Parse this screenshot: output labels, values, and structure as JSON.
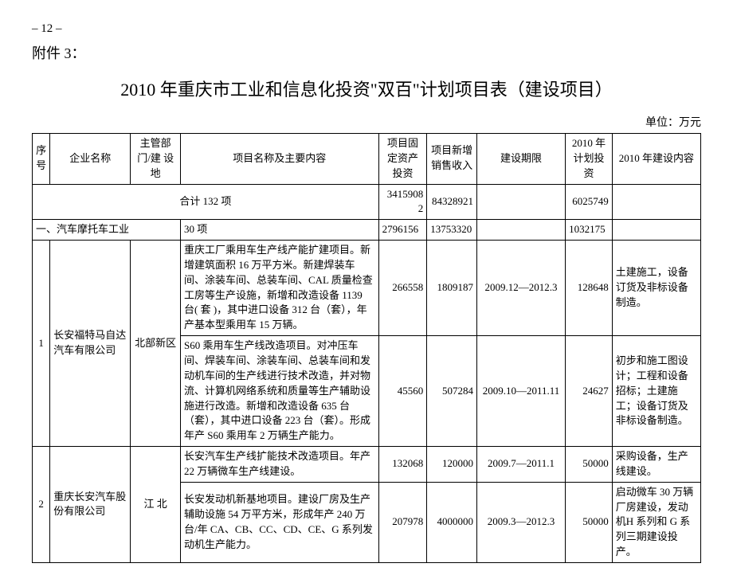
{
  "page_number": "– 12 –",
  "attachment_label": "附件 3：",
  "title": "2010 年重庆市工业和信息化投资\"双百\"计划项目表（建设项目）",
  "unit_label": "单位：万元",
  "columns": {
    "seq": "序号",
    "company": "企业名称",
    "dept": "主管部门/建 设 地",
    "desc": "项目名称及主要内容",
    "fixed_invest": "项目固定资产投资",
    "sales_income": "项目新增销售收入",
    "period": "建设期限",
    "plan_invest": "2010 年计划投资",
    "build_content": "2010 年建设内容"
  },
  "total_row": {
    "label": "合计   132 项",
    "fixed_invest": "34159082",
    "sales_income": "84328921",
    "plan_invest": "6025749"
  },
  "section_row": {
    "label": "一、汽车摩托车工业",
    "count": "30 项",
    "fixed_invest": "2796156",
    "sales_income": "13753320",
    "plan_invest": "1032175"
  },
  "rows": [
    {
      "seq": "1",
      "company": "长安福特马自达汽车有限公司",
      "dept": "北部新区",
      "projects": [
        {
          "desc": "重庆工厂乘用车生产线产能扩建项目。新增建筑面积 16 万平方米。新建焊装车间、涂装车间、总装车间、CAL 质量检查工房等生产设施，新增和改造设备 1139 台( 套 )，其中进口设备 312 台（套），年产基本型乘用车 15 万辆。",
          "fixed_invest": "266558",
          "sales_income": "1809187",
          "period": "2009.12—2012.3",
          "plan_invest": "128648",
          "build_content": "土建施工，设备订货及非标设备制造。"
        },
        {
          "desc": "S60 乘用车生产线改造项目。对冲压车间、焊装车间、涂装车间、总装车间和发动机车间的生产线进行技术改造，并对物流、计算机网络系统和质量等生产辅助设施进行改造。新增和改造设备 635 台（套），其中进口设备 223 台（套）。形成年产 S60 乘用车 2 万辆生产能力。",
          "fixed_invest": "45560",
          "sales_income": "507284",
          "period": "2009.10—2011.11",
          "plan_invest": "24627",
          "build_content": "初步和施工图设计；工程和设备招标；土建施工；设备订货及非标设备制造。"
        }
      ]
    },
    {
      "seq": "2",
      "company": "重庆长安汽车股份有限公司",
      "dept": "江   北",
      "projects": [
        {
          "desc": "长安汽车生产线扩能技术改造项目。年产 22 万辆微车生产线建设。",
          "fixed_invest": "132068",
          "sales_income": "120000",
          "period": "2009.7—2011.1",
          "plan_invest": "50000",
          "build_content": "采购设备，生产线建设。"
        },
        {
          "desc": "长安发动机新基地项目。建设厂房及生产辅助设施 54 万平方米，形成年产 240 万台/年 CA、CB、CC、CD、CE、G 系列发动机生产能力。",
          "fixed_invest": "207978",
          "sales_income": "4000000",
          "period": "2009.3—2012.3",
          "plan_invest": "50000",
          "build_content": "启动微车 30 万辆厂房建设，发动机H 系列和 G 系列三期建设投产。"
        }
      ]
    }
  ]
}
